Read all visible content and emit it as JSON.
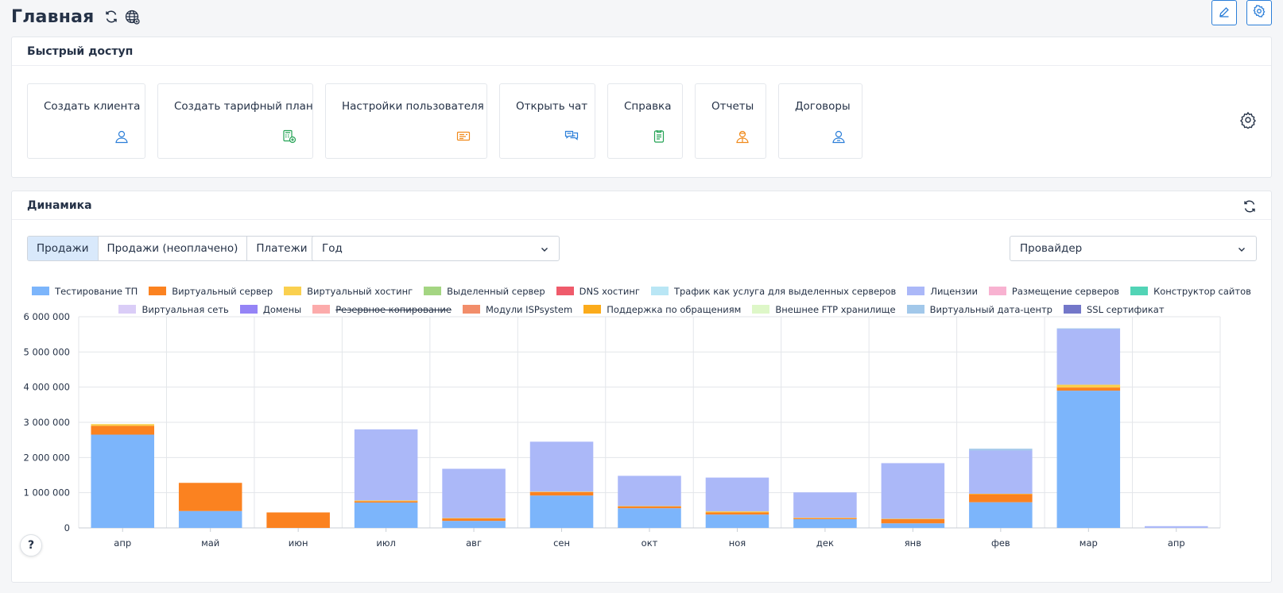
{
  "header": {
    "title": "Главная",
    "refresh_icon": "refresh-icon",
    "globe_icon": "globe-icon",
    "edit_icon": "pencil-icon",
    "settings_icon": "gear-icon"
  },
  "quick_access": {
    "title": "Быстрый доступ",
    "cards": [
      {
        "label": "Создать клиента",
        "icon": "user-icon",
        "color": "#2b7ed8"
      },
      {
        "label": "Создать тарифный план",
        "icon": "calculator-plus-icon",
        "color": "#23a254"
      },
      {
        "label": "Настройки пользователя",
        "icon": "settings-list-icon",
        "color": "#f08a1c"
      },
      {
        "label": "Открыть чат",
        "icon": "chat-icon",
        "color": "#2b7ed8"
      },
      {
        "label": "Справка",
        "icon": "document-icon",
        "color": "#23a254"
      },
      {
        "label": "Отчеты",
        "icon": "agent-icon",
        "color": "#f08a1c"
      },
      {
        "label": "Договоры",
        "icon": "user-contract-icon",
        "color": "#2b7ed8"
      }
    ]
  },
  "dynamics": {
    "title": "Динамика",
    "tabs": [
      "Продажи",
      "Продажи (неоплачено)",
      "Платежи"
    ],
    "active_tab": "Продажи",
    "period_select": "Год",
    "provider_select": "Провайдер"
  },
  "help_label": "?",
  "chart_data": {
    "type": "bar",
    "stacked": true,
    "categories": [
      "апр",
      "май",
      "июн",
      "июл",
      "авг",
      "сен",
      "окт",
      "ноя",
      "дек",
      "янв",
      "фев",
      "мар",
      "апр"
    ],
    "ylim": [
      0,
      6000000
    ],
    "yticks": [
      "0",
      "1 000 000",
      "2 000 000",
      "3 000 000",
      "4 000 000",
      "5 000 000",
      "6 000 000"
    ],
    "legend": [
      {
        "name": "Тестирование ТП",
        "color": "#7cb5fb"
      },
      {
        "name": "Виртуальный сервер",
        "color": "#fb8220"
      },
      {
        "name": "Виртуальный хостинг",
        "color": "#fad04f"
      },
      {
        "name": "Выделенный сервер",
        "color": "#a4d582"
      },
      {
        "name": "DNS хостинг",
        "color": "#ef5b6b"
      },
      {
        "name": "Трафик как услуга для выделенных серверов",
        "color": "#b9e6f5"
      },
      {
        "name": "Лицензии",
        "color": "#abb8f8"
      },
      {
        "name": "Размещение серверов",
        "color": "#f8b2d1"
      },
      {
        "name": "Конструктор сайтов",
        "color": "#52d4b6"
      },
      {
        "name": "Виртуальная сеть",
        "color": "#dacdf7"
      },
      {
        "name": "Домены",
        "color": "#9584f6"
      },
      {
        "name": "Резервное копирование",
        "color": "#fcabab",
        "hidden": true
      },
      {
        "name": "Модули ISPsystem",
        "color": "#f28d6a"
      },
      {
        "name": "Поддержка по обращениям",
        "color": "#fbab1b"
      },
      {
        "name": "Внешнее FTP хранилище",
        "color": "#def7c8"
      },
      {
        "name": "Виртуальный дата-центр",
        "color": "#a2c8ea"
      },
      {
        "name": "SSL сертификат",
        "color": "#7377c9"
      }
    ],
    "series": [
      {
        "name": "Тестирование ТП",
        "values": [
          2650000,
          480000,
          0,
          720000,
          200000,
          920000,
          560000,
          380000,
          250000,
          130000,
          730000,
          3900000,
          0
        ]
      },
      {
        "name": "Виртуальный сервер",
        "values": [
          250000,
          800000,
          440000,
          40000,
          70000,
          100000,
          50000,
          60000,
          30000,
          120000,
          230000,
          90000,
          0
        ]
      },
      {
        "name": "Виртуальный хостинг",
        "values": [
          50000,
          0,
          0,
          20000,
          10000,
          10000,
          10000,
          30000,
          10000,
          10000,
          10000,
          80000,
          0
        ]
      },
      {
        "name": "Лицензии",
        "values": [
          0,
          0,
          0,
          2020000,
          1400000,
          1420000,
          860000,
          960000,
          720000,
          1580000,
          1230000,
          1580000,
          50000
        ]
      },
      {
        "name": "Виртуальный дата-центр",
        "values": [
          0,
          0,
          0,
          0,
          0,
          0,
          0,
          0,
          0,
          0,
          50000,
          20000,
          0
        ]
      }
    ]
  }
}
